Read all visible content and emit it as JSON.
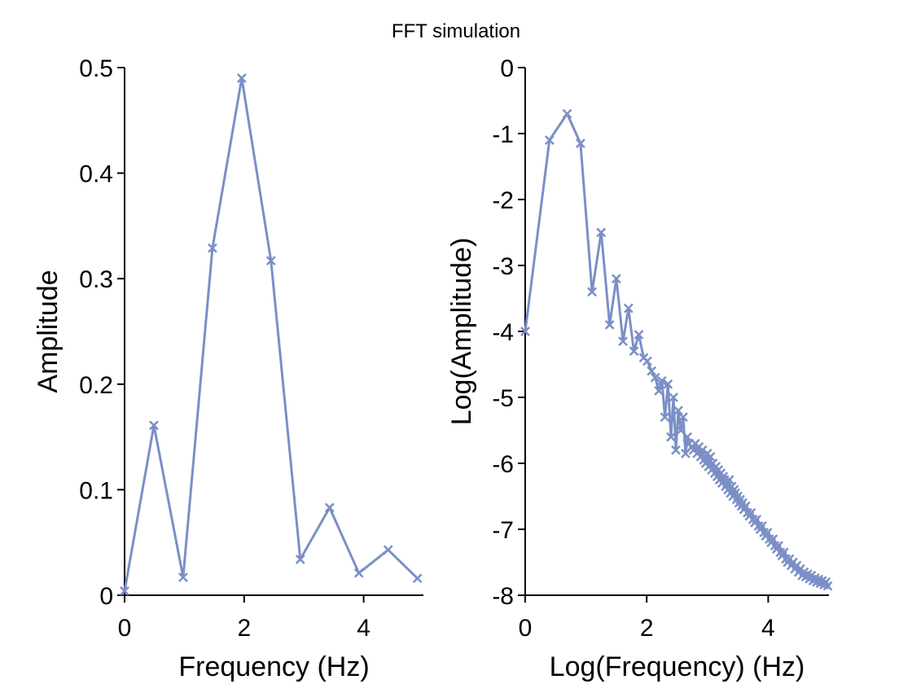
{
  "figure_title": "FFT simulation",
  "series_color": "#7b8fc6",
  "chart_data": [
    {
      "type": "line",
      "marker": "x",
      "xlabel": "Frequency (Hz)",
      "ylabel": "Amplitude",
      "xlim": [
        0,
        5
      ],
      "ylim": [
        0,
        0.5
      ],
      "xticks": [
        0,
        2,
        4
      ],
      "xtick_labels": [
        "0",
        "2",
        "4"
      ],
      "yticks": [
        0,
        0.1,
        0.2,
        0.3,
        0.4,
        0.5
      ],
      "ytick_labels": [
        "0",
        "0.1",
        "0.2",
        "0.3",
        "0.4",
        "0.5"
      ],
      "x": [
        0,
        0.49,
        0.98,
        1.47,
        1.96,
        2.45,
        2.94,
        3.43,
        3.92,
        4.41,
        4.9
      ],
      "y": [
        0.004,
        0.161,
        0.017,
        0.329,
        0.49,
        0.317,
        0.034,
        0.083,
        0.021,
        0.043,
        0.016
      ]
    },
    {
      "type": "line",
      "marker": "x",
      "xlabel": "Log(Frequency) (Hz)",
      "ylabel": "Log(Amplitude)",
      "xlim": [
        0,
        5
      ],
      "ylim": [
        -8,
        0
      ],
      "xticks": [
        0,
        2,
        4
      ],
      "xtick_labels": [
        "0",
        "2",
        "4"
      ],
      "yticks": [
        -8,
        -7,
        -6,
        -5,
        -4,
        -3,
        -2,
        -1,
        0
      ],
      "ytick_labels": [
        "-8",
        "-7",
        "-6",
        "-5",
        "-4",
        "-3",
        "-2",
        "-1",
        "0"
      ],
      "x": [
        0,
        0.4,
        0.69,
        0.91,
        1.1,
        1.25,
        1.39,
        1.5,
        1.61,
        1.7,
        1.79,
        1.87,
        1.95,
        2.01,
        2.08,
        2.14,
        2.2,
        2.25,
        2.3,
        2.35,
        2.4,
        2.44,
        2.48,
        2.52,
        2.56,
        2.6,
        2.64,
        2.67,
        2.7,
        2.74,
        2.77,
        2.8,
        2.83,
        2.86,
        2.89,
        2.92,
        2.94,
        2.97,
        3.0,
        3.02,
        3.05,
        3.07,
        3.09,
        3.12,
        3.14,
        3.16,
        3.18,
        3.2,
        3.22,
        3.24,
        3.26,
        3.28,
        3.3,
        3.32,
        3.34,
        3.36,
        3.38,
        3.4,
        3.42,
        3.44,
        3.46,
        3.48,
        3.5,
        3.52,
        3.54,
        3.56,
        3.58,
        3.6,
        3.63,
        3.66,
        3.69,
        3.72,
        3.75,
        3.78,
        3.81,
        3.84,
        3.87,
        3.9,
        3.93,
        3.96,
        3.99,
        4.02,
        4.05,
        4.08,
        4.11,
        4.14,
        4.17,
        4.2,
        4.23,
        4.26,
        4.29,
        4.32,
        4.35,
        4.38,
        4.41,
        4.44,
        4.47,
        4.5,
        4.53,
        4.56,
        4.59,
        4.62,
        4.65,
        4.68,
        4.71,
        4.74,
        4.77,
        4.8,
        4.83,
        4.86,
        4.89,
        4.92,
        4.95,
        4.98
      ],
      "y": [
        -4.0,
        -1.1,
        -0.7,
        -1.15,
        -3.4,
        -2.5,
        -3.9,
        -3.2,
        -4.15,
        -3.65,
        -4.3,
        -4.05,
        -4.4,
        -4.45,
        -4.6,
        -4.7,
        -4.9,
        -4.75,
        -5.3,
        -4.8,
        -5.6,
        -5.0,
        -5.8,
        -5.2,
        -5.5,
        -5.3,
        -5.85,
        -5.6,
        -5.7,
        -5.75,
        -5.8,
        -5.7,
        -5.85,
        -5.75,
        -5.9,
        -5.8,
        -5.95,
        -6.0,
        -5.85,
        -6.05,
        -5.9,
        -6.1,
        -6.0,
        -6.15,
        -6.05,
        -6.2,
        -6.1,
        -6.25,
        -6.15,
        -6.3,
        -6.2,
        -6.25,
        -6.35,
        -6.3,
        -6.4,
        -6.25,
        -6.45,
        -6.35,
        -6.5,
        -6.4,
        -6.45,
        -6.55,
        -6.5,
        -6.6,
        -6.55,
        -6.65,
        -6.6,
        -6.7,
        -6.65,
        -6.75,
        -6.8,
        -6.75,
        -6.85,
        -6.9,
        -6.85,
        -6.95,
        -7.0,
        -6.95,
        -7.05,
        -7.1,
        -7.05,
        -7.15,
        -7.2,
        -7.15,
        -7.25,
        -7.3,
        -7.25,
        -7.35,
        -7.4,
        -7.35,
        -7.45,
        -7.5,
        -7.45,
        -7.55,
        -7.5,
        -7.6,
        -7.55,
        -7.65,
        -7.6,
        -7.7,
        -7.65,
        -7.72,
        -7.68,
        -7.75,
        -7.7,
        -7.78,
        -7.74,
        -7.8,
        -7.76,
        -7.82,
        -7.78,
        -7.84,
        -7.8,
        -7.86
      ]
    }
  ]
}
